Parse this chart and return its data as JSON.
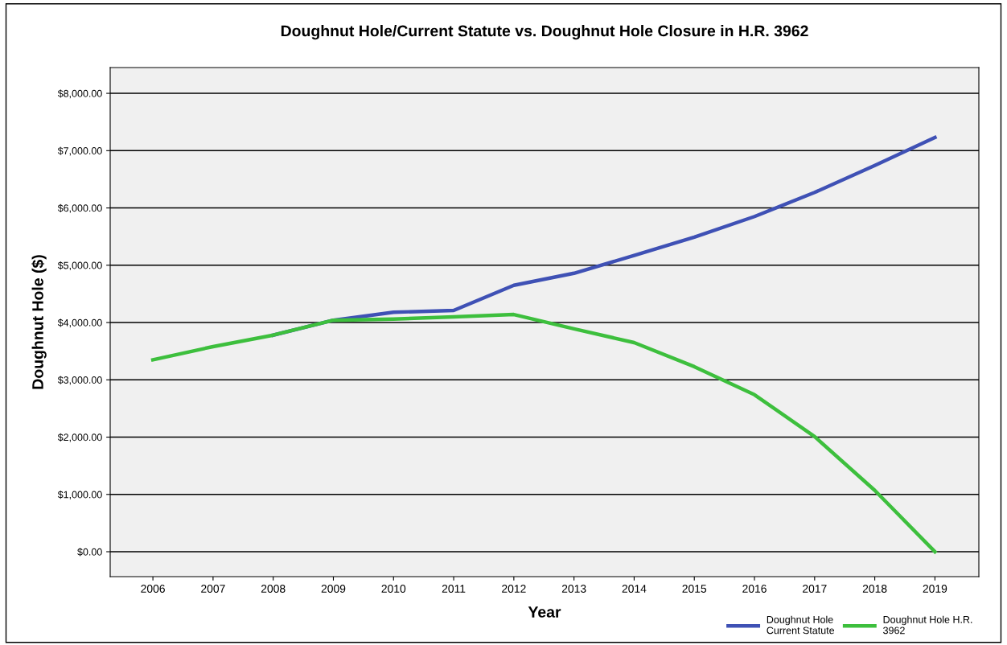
{
  "chart_data": {
    "type": "line",
    "title": "Doughnut Hole/Current Statute vs. Doughnut Hole Closure in H.R. 3962",
    "xlabel": "Year",
    "ylabel": "Doughnut Hole ($)",
    "categories": [
      "2006",
      "2007",
      "2008",
      "2009",
      "2010",
      "2011",
      "2012",
      "2013",
      "2014",
      "2015",
      "2016",
      "2017",
      "2018",
      "2019"
    ],
    "series": [
      {
        "name": "Doughnut Hole\nCurrent Statute",
        "color": "#3f51b5",
        "values": [
          null,
          null,
          3780,
          4040,
          4180,
          4210,
          4650,
          4860,
          5170,
          5490,
          5850,
          6270,
          6740,
          7230
        ]
      },
      {
        "name": "Doughnut Hole H.R.\n3962",
        "color": "#3dbf3d",
        "values": [
          3350,
          3580,
          3780,
          4040,
          4060,
          4100,
          4140,
          3890,
          3650,
          3230,
          2740,
          2010,
          1070,
          0
        ]
      }
    ],
    "ylim": [
      -435,
      8450
    ],
    "yticks": [
      {
        "value": 0,
        "label": "$0.00"
      },
      {
        "value": 1000,
        "label": "$1,000.00"
      },
      {
        "value": 2000,
        "label": "$2,000.00"
      },
      {
        "value": 3000,
        "label": "$3,000.00"
      },
      {
        "value": 4000,
        "label": "$4,000.00"
      },
      {
        "value": 5000,
        "label": "$5,000.00"
      },
      {
        "value": 6000,
        "label": "$6,000.00"
      },
      {
        "value": 7000,
        "label": "$7,000.00"
      },
      {
        "value": 8000,
        "label": "$8,000.00"
      }
    ],
    "grid": "y",
    "legend": "bottom right",
    "marker": "none",
    "line_style": "solid"
  }
}
